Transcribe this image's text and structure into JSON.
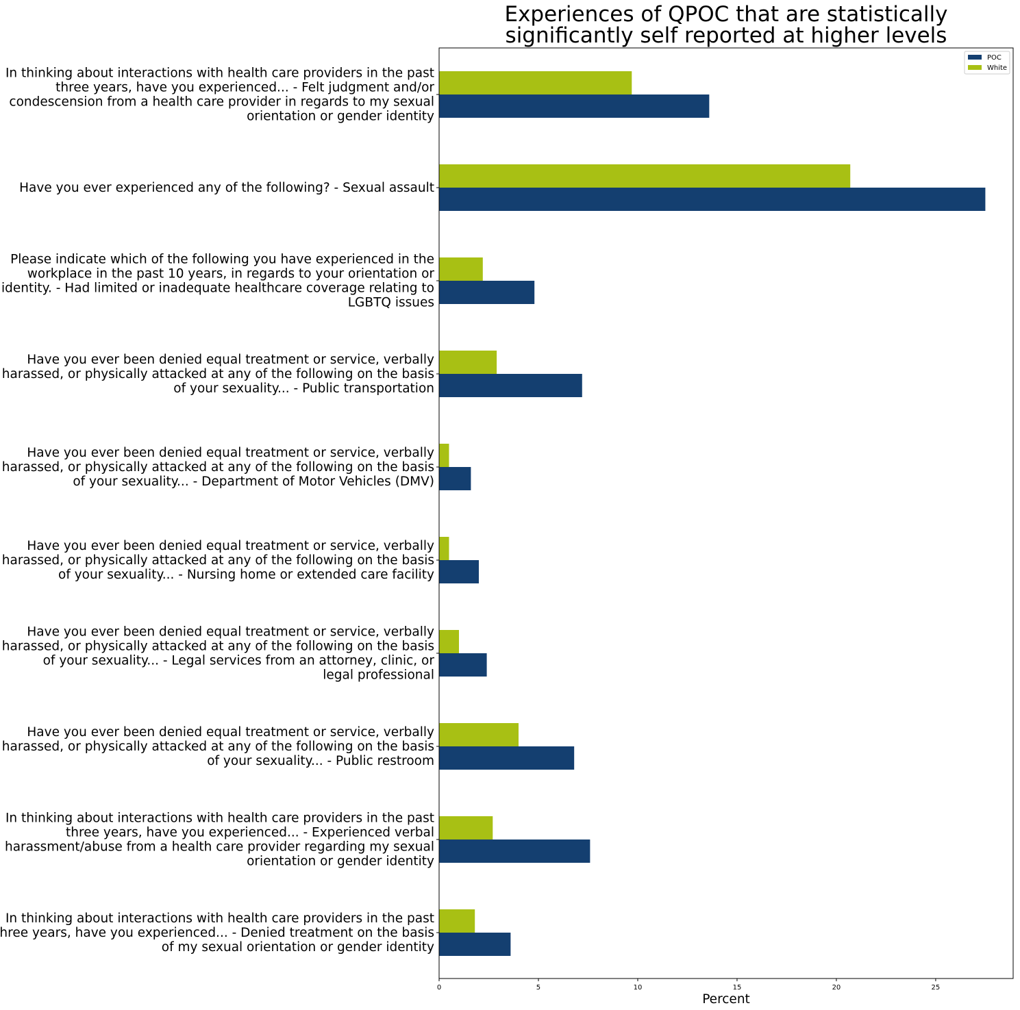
{
  "chart_data": {
    "type": "bar",
    "orientation": "horizontal",
    "title": "Experiences of QPOC that are statistically\nsignificantly self reported at higher levels",
    "xlabel": "Percent",
    "ylabel": "",
    "xlim": [
      0,
      28.9
    ],
    "xticks": [
      0,
      5,
      10,
      15,
      20,
      25
    ],
    "grid": false,
    "legend_position": "top-right",
    "categories": [
      "In thinking about interactions with health care providers in the past\nthree years, have you experienced... - Felt judgment and/or\ncondescension from a health care provider in regards to my sexual\norientation or gender identity",
      "Have you ever experienced any of the following? - Sexual assault",
      "Please indicate which of the following you have experienced in the\nworkplace in the past 10 years, in regards to your orientation or\nidentity. - Had limited or inadequate healthcare coverage relating to\nLGBTQ issues",
      "Have you ever been denied equal treatment or service, verbally\nharassed, or physically attacked at any of the following on the basis\nof your sexuality... - Public transportation",
      "Have you ever been denied equal treatment or service, verbally\nharassed, or physically attacked at any of the following on the basis\nof your sexuality... - Department of Motor Vehicles (DMV)",
      "Have you ever been denied equal treatment or service, verbally\nharassed, or physically attacked at any of the following on the basis\nof your sexuality... - Nursing home or extended care facility",
      "Have you ever been denied equal treatment or service, verbally\nharassed, or physically attacked at any of the following on the basis\nof your sexuality... - Legal services from an attorney, clinic, or\nlegal professional",
      "Have you ever been denied equal treatment or service, verbally\nharassed, or physically attacked at any of the following on the basis\nof your sexuality... - Public restroom",
      "In thinking about interactions with health care providers in the past\nthree years, have you experienced... - Experienced verbal\nharassment/abuse from a health care provider regarding my sexual\norientation or gender identity",
      "In thinking about interactions with health care providers in the past\nthree years, have you experienced... - Denied treatment on the basis\nof my sexual orientation or gender identity"
    ],
    "series": [
      {
        "name": "POC",
        "color": "#143f70",
        "values": [
          13.6,
          27.5,
          4.8,
          7.2,
          1.6,
          2.0,
          2.4,
          6.8,
          7.6,
          3.6
        ]
      },
      {
        "name": "White",
        "color": "#a8c014",
        "values": [
          9.7,
          20.7,
          2.2,
          2.9,
          0.5,
          0.5,
          1.0,
          4.0,
          2.7,
          1.8
        ]
      }
    ]
  }
}
